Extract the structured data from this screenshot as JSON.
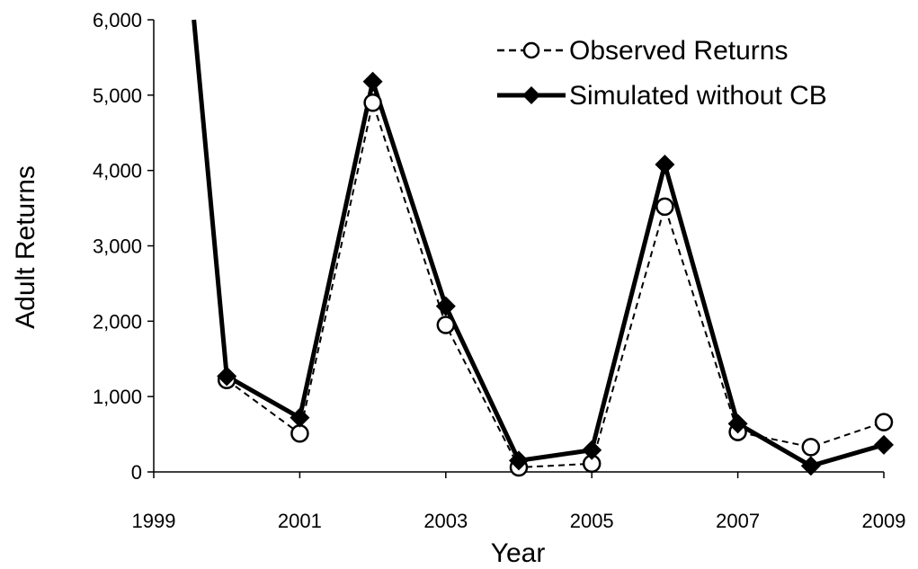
{
  "chart_data": {
    "type": "line",
    "title": "",
    "xlabel": "Year",
    "ylabel": "Adult Returns",
    "xlim": [
      1999,
      2009
    ],
    "ylim": [
      0,
      6000
    ],
    "x_ticks": [
      1999,
      2001,
      2003,
      2005,
      2007,
      2009
    ],
    "x_tick_labels": [
      "1999",
      "2001",
      "2003",
      "2005",
      "2007",
      "2009"
    ],
    "y_ticks": [
      0,
      1000,
      2000,
      3000,
      4000,
      5000,
      6000
    ],
    "y_tick_labels": [
      "0",
      "1,000",
      "2,000",
      "3,000",
      "4,000",
      "5,000",
      "6,000"
    ],
    "grid": false,
    "legend_position": "top-right",
    "series": [
      {
        "name": "Observed Returns",
        "style": "dashed-open-circle",
        "color": "#000000",
        "x": [
          2000,
          2001,
          2002,
          2003,
          2004,
          2005,
          2006,
          2007,
          2008,
          2009
        ],
        "y": [
          1220,
          510,
          4900,
          1950,
          60,
          110,
          3520,
          530,
          330,
          660
        ]
      },
      {
        "name": "Simulated without CB",
        "style": "solid-filled-diamond",
        "color": "#000000",
        "x": [
          1999.55,
          2000,
          2001,
          2002,
          2003,
          2004,
          2005,
          2006,
          2007,
          2008,
          2009
        ],
        "y": [
          6000,
          1270,
          720,
          5180,
          2200,
          150,
          290,
          4080,
          640,
          80,
          360
        ]
      }
    ]
  }
}
